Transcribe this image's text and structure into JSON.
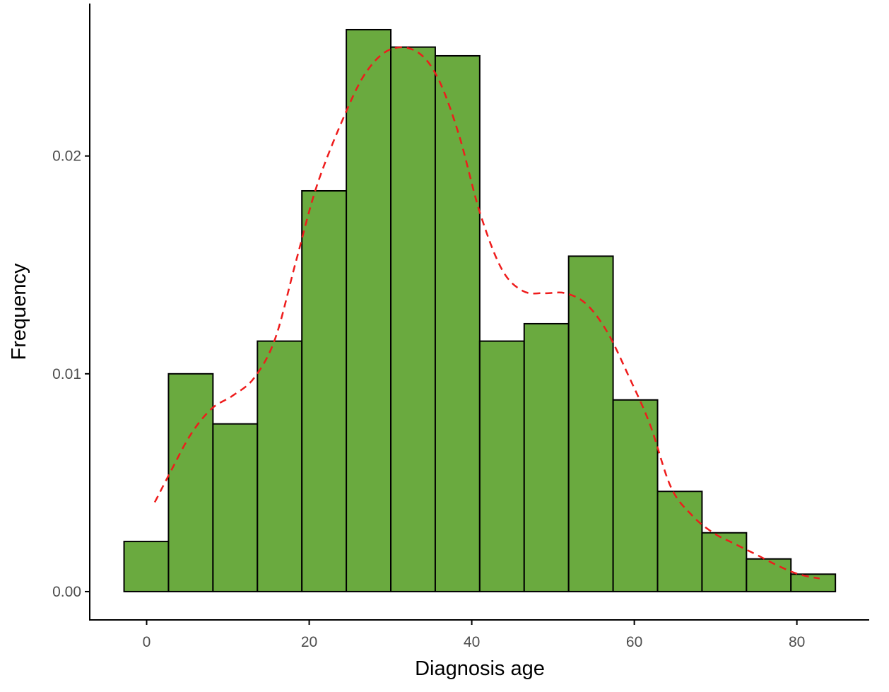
{
  "chart_data": {
    "type": "bar",
    "title": "",
    "xlabel": "Diagnosis age",
    "ylabel": "Frequency",
    "xlim": [
      -7.0,
      88.9
    ],
    "ylim": [
      -0.0013,
      0.027
    ],
    "xticks": [
      0,
      20,
      40,
      60,
      80
    ],
    "xtick_labels": [
      "0",
      "20",
      "40",
      "60",
      "80"
    ],
    "yticks": [
      0.0,
      0.01,
      0.02
    ],
    "ytick_labels": [
      "0.00",
      "0.01",
      "0.02"
    ],
    "grid": false,
    "bin_start": -2.78,
    "bin_width": 5.47,
    "values": [
      0.0023,
      0.01,
      0.0077,
      0.0115,
      0.0184,
      0.0258,
      0.025,
      0.0246,
      0.0115,
      0.0123,
      0.0154,
      0.0088,
      0.0046,
      0.0027,
      0.0015,
      0.0008
    ],
    "bar_color": "#6aaa3f",
    "bar_edge_color": "#000000",
    "density": {
      "name": "density",
      "color": "#ee1c1c",
      "style": "dashed",
      "x": [
        1.0,
        2.8,
        5.4,
        8.0,
        10.6,
        13.2,
        15.8,
        18.4,
        21.0,
        24.5,
        27.1,
        30.0,
        33.2,
        35.8,
        38.4,
        41.0,
        43.7,
        46.3,
        48.9,
        51.5,
        54.1,
        56.7,
        59.3,
        61.9,
        64.5,
        67.1,
        69.7,
        72.3,
        75.0,
        77.6,
        80.2,
        82.8
      ],
      "y": [
        0.0041,
        0.0054,
        0.0072,
        0.0084,
        0.009,
        0.0098,
        0.0116,
        0.0152,
        0.0187,
        0.022,
        0.0239,
        0.0249,
        0.0248,
        0.0236,
        0.021,
        0.0174,
        0.0148,
        0.0138,
        0.0137,
        0.0137,
        0.0132,
        0.0119,
        0.0099,
        0.0077,
        0.0048,
        0.0035,
        0.0027,
        0.0022,
        0.0017,
        0.0012,
        0.0008,
        0.0006
      ]
    }
  }
}
